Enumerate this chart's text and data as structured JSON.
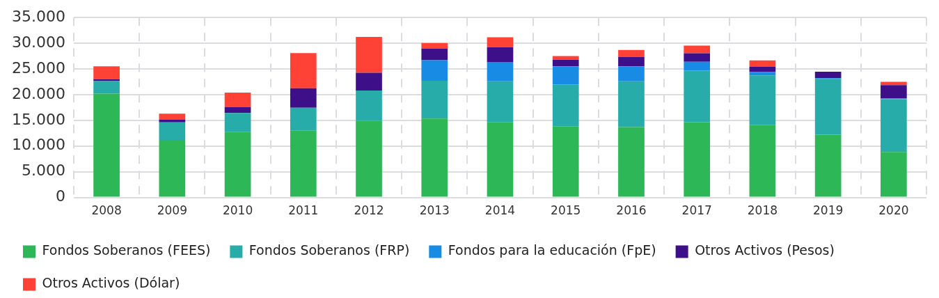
{
  "chart_data": {
    "type": "bar",
    "stacked": true,
    "categories": [
      "2008",
      "2009",
      "2010",
      "2011",
      "2012",
      "2013",
      "2014",
      "2015",
      "2016",
      "2017",
      "2018",
      "2019",
      "2020"
    ],
    "series": [
      {
        "name": "Fondos Soberanos (FEES)",
        "color": "#2db757",
        "values": [
          20200,
          11200,
          12700,
          13050,
          14950,
          15350,
          14600,
          13850,
          13700,
          14650,
          14050,
          12200,
          8850
        ]
      },
      {
        "name": "Fondos Soberanos (FRP)",
        "color": "#27acaa",
        "values": [
          2450,
          3400,
          3750,
          4400,
          5850,
          7350,
          8000,
          8150,
          8900,
          10050,
          9700,
          10800,
          10250
        ]
      },
      {
        "name": "Fondos para la educación (FpE)",
        "color": "#188ce5",
        "values": [
          0,
          0,
          0,
          0,
          0,
          4000,
          3750,
          3500,
          2900,
          1700,
          650,
          200,
          150
        ]
      },
      {
        "name": "Otros Activos (Pesos)",
        "color": "#3d108a",
        "values": [
          350,
          500,
          1100,
          3800,
          3450,
          2250,
          2900,
          1300,
          1800,
          1650,
          1000,
          1250,
          2600
        ]
      },
      {
        "name": "Otros Activos (Dólar)",
        "color": "#ff4136",
        "values": [
          2500,
          1200,
          2850,
          6850,
          7000,
          1100,
          1900,
          700,
          1400,
          1500,
          1250,
          0,
          650
        ]
      }
    ],
    "ylim": [
      0,
      35000
    ],
    "yticks": [
      0,
      {
        "value": 5000,
        "label": "5.000"
      },
      {
        "value": 10000,
        "label": "10.000"
      },
      {
        "value": 15000,
        "label": "15.000"
      },
      {
        "value": 20000,
        "label": "20.000"
      },
      {
        "value": 25000,
        "label": "25.000"
      },
      {
        "value": 30000,
        "label": "30.000"
      },
      {
        "value": 35000,
        "label": "35.000"
      }
    ],
    "grid": true,
    "legend": "bottom"
  }
}
